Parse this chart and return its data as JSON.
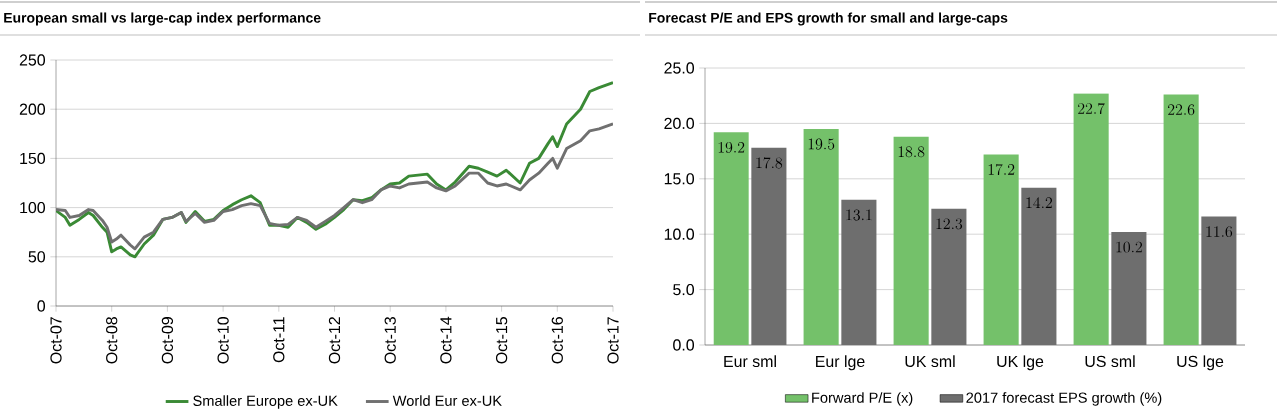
{
  "chart_data": [
    {
      "type": "line",
      "title": "European small vs large-cap index performance",
      "x": [
        "2007-10",
        "2007-12",
        "2008-01",
        "2008-03",
        "2008-05",
        "2008-06",
        "2008-08",
        "2008-09",
        "2008-10",
        "2008-11",
        "2008-12",
        "2009-02",
        "2009-03",
        "2009-05",
        "2009-07",
        "2009-09",
        "2009-11",
        "2010-01",
        "2010-02",
        "2010-04",
        "2010-06",
        "2010-08",
        "2010-10",
        "2010-12",
        "2011-02",
        "2011-04",
        "2011-06",
        "2011-08",
        "2011-10",
        "2011-12",
        "2012-02",
        "2012-04",
        "2012-06",
        "2012-08",
        "2012-10",
        "2012-12",
        "2013-02",
        "2013-04",
        "2013-06",
        "2013-08",
        "2013-10",
        "2013-12",
        "2014-02",
        "2014-04",
        "2014-06",
        "2014-08",
        "2014-10",
        "2014-12",
        "2015-03",
        "2015-05",
        "2015-07",
        "2015-09",
        "2015-11",
        "2016-02",
        "2016-04",
        "2016-06",
        "2016-08",
        "2016-09",
        "2016-10",
        "2016-12",
        "2017-03",
        "2017-05",
        "2017-07",
        "2017-10"
      ],
      "series": [
        {
          "name": "Smaller Europe ex-UK",
          "color": "#3a8a35",
          "values": [
            97,
            90,
            82,
            88,
            95,
            92,
            80,
            75,
            55,
            58,
            60,
            52,
            50,
            63,
            72,
            88,
            90,
            95,
            85,
            96,
            86,
            88,
            97,
            103,
            108,
            112,
            105,
            82,
            82,
            80,
            90,
            85,
            78,
            83,
            90,
            98,
            108,
            107,
            110,
            118,
            124,
            125,
            132,
            133,
            134,
            124,
            118,
            126,
            142,
            140,
            136,
            132,
            138,
            125,
            145,
            150,
            165,
            172,
            162,
            185,
            200,
            218,
            222,
            227
          ]
        },
        {
          "name": "World Eur ex-UK",
          "color": "#707070",
          "values": [
            98,
            97,
            90,
            92,
            98,
            97,
            87,
            80,
            65,
            68,
            72,
            62,
            58,
            70,
            75,
            88,
            90,
            95,
            86,
            94,
            85,
            87,
            96,
            98,
            102,
            104,
            102,
            84,
            82,
            83,
            90,
            87,
            80,
            86,
            92,
            100,
            108,
            105,
            108,
            118,
            122,
            120,
            124,
            125,
            126,
            120,
            117,
            122,
            135,
            135,
            125,
            122,
            124,
            118,
            128,
            135,
            145,
            150,
            140,
            160,
            168,
            178,
            180,
            185
          ]
        }
      ],
      "xlim": [
        "2007-10",
        "2017-10"
      ],
      "xticks": [
        {
          "value": "2007-10",
          "label": "Oct-07"
        },
        {
          "value": "2008-10",
          "label": "Oct-08"
        },
        {
          "value": "2009-10",
          "label": "Oct-09"
        },
        {
          "value": "2010-10",
          "label": "Oct-10"
        },
        {
          "value": "2011-10",
          "label": "Oct-11"
        },
        {
          "value": "2012-10",
          "label": "Oct-12"
        },
        {
          "value": "2013-10",
          "label": "Oct-13"
        },
        {
          "value": "2014-10",
          "label": "Oct-14"
        },
        {
          "value": "2015-10",
          "label": "Oct-15"
        },
        {
          "value": "2016-10",
          "label": "Oct-16"
        },
        {
          "value": "2017-10",
          "label": "Oct-17"
        }
      ],
      "ylim": [
        0,
        250
      ],
      "yticks": [
        0,
        50,
        100,
        150,
        200,
        250
      ],
      "grid": "y",
      "legend": "bottom",
      "line_style": "solid",
      "marker": "none"
    },
    {
      "type": "bar",
      "title": "Forecast P/E and EPS growth for small and large-caps",
      "categories": [
        "Eur sml",
        "Eur lge",
        "UK sml",
        "UK lge",
        "US sml",
        "US lge"
      ],
      "series": [
        {
          "name": "Forward P/E (x)",
          "color": "#74c16a",
          "values": [
            19.2,
            19.5,
            18.8,
            17.2,
            22.7,
            22.6
          ]
        },
        {
          "name": "2017 forecast EPS growth (%)",
          "color": "#6e6e6e",
          "values": [
            17.8,
            13.1,
            12.3,
            14.2,
            10.2,
            11.6
          ]
        }
      ],
      "ylim": [
        0,
        25
      ],
      "yticks": [
        {
          "value": 0,
          "label": "0.0"
        },
        {
          "value": 5,
          "label": "5.0"
        },
        {
          "value": 10,
          "label": "10.0"
        },
        {
          "value": 15,
          "label": "15.0"
        },
        {
          "value": 20,
          "label": "20.0"
        },
        {
          "value": 25,
          "label": "25.0"
        }
      ],
      "grid": "y",
      "legend": "bottom",
      "data_labels": true
    }
  ]
}
